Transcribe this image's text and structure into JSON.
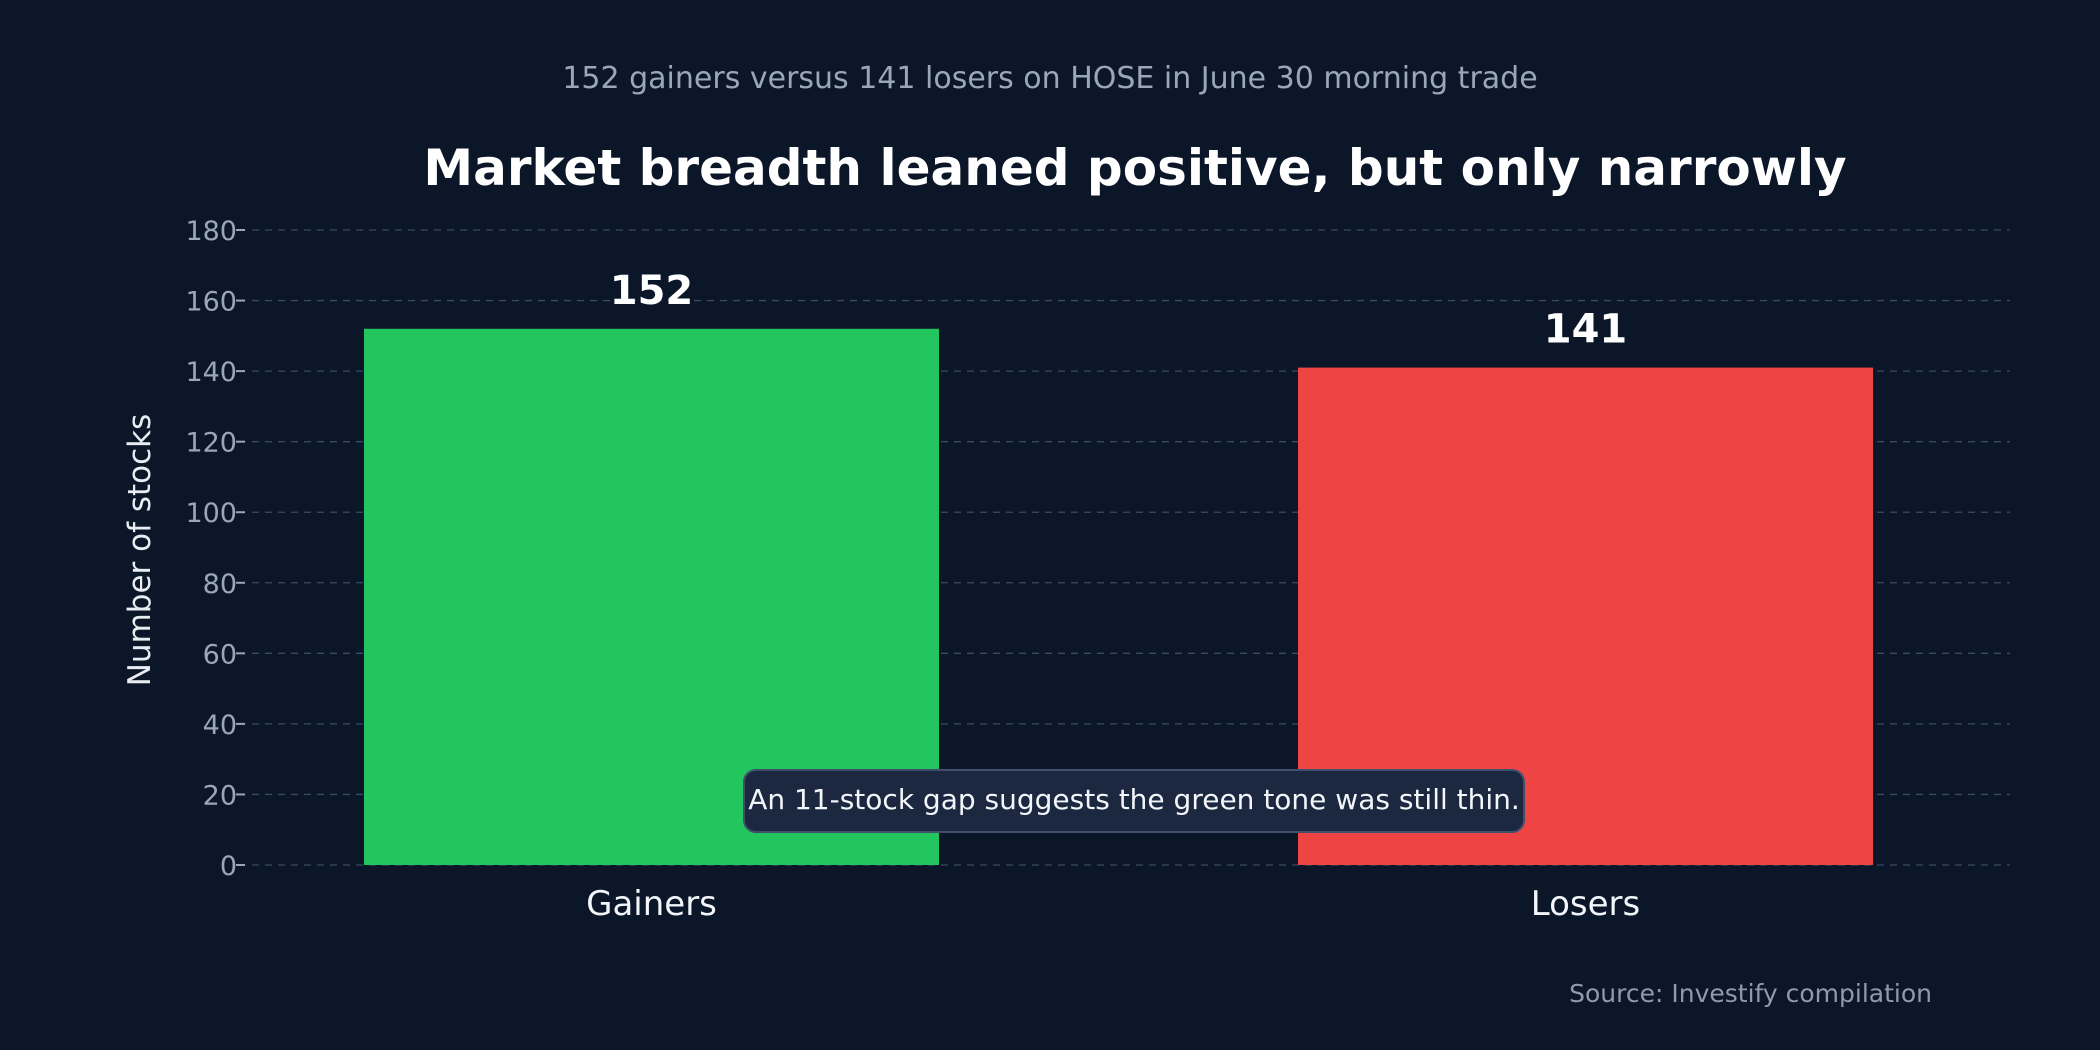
{
  "chart_data": {
    "type": "bar",
    "subtitle": "152 gainers versus 141 losers on HOSE in June 30 morning trade",
    "title": "Market breadth leaned positive, but only narrowly",
    "xlabel": "",
    "ylabel": "Number of stocks",
    "categories": [
      "Gainers",
      "Losers"
    ],
    "values": [
      152,
      141
    ],
    "value_labels": [
      "152",
      "141"
    ],
    "colors": [
      "#22c55e",
      "#ef4444"
    ],
    "ylim": [
      0,
      180
    ],
    "yticks": [
      0,
      20,
      40,
      60,
      80,
      100,
      120,
      140,
      160,
      180
    ],
    "grid": true,
    "annotation": "An 11-stock gap suggests the green tone was still thin.",
    "source": "Source: Investify compilation"
  }
}
